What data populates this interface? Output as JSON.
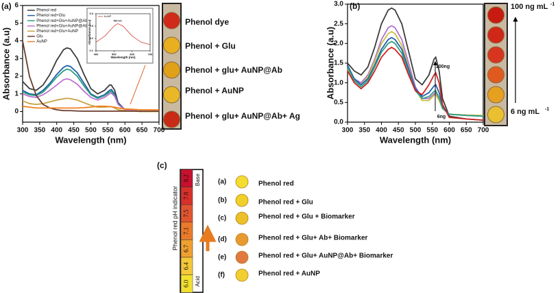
{
  "chart_data": [
    {
      "type": "line",
      "xlabel": "Wavelength (nm)",
      "ylabel": "Absorbance (a.u)",
      "x": [
        300,
        320,
        340,
        360,
        380,
        400,
        420,
        430,
        440,
        460,
        480,
        500,
        520,
        540,
        555,
        560,
        570,
        580,
        600,
        650,
        700
      ],
      "xlim": [
        300,
        700
      ],
      "xticks": [
        300,
        350,
        400,
        450,
        500,
        550,
        600,
        650,
        700
      ],
      "ylim": [
        -0.6,
        6
      ],
      "yticks": [
        0,
        1,
        2,
        3,
        4,
        5,
        6
      ],
      "legend": "upper left",
      "series": [
        {
          "name": "Phenol red",
          "color": "#3a3a3a",
          "values": [
            1.7,
            1.3,
            1.2,
            1.5,
            2.1,
            2.9,
            3.5,
            3.6,
            3.55,
            3.0,
            2.1,
            1.3,
            1.0,
            1.2,
            1.5,
            1.5,
            1.2,
            0.5,
            0.1,
            0.0,
            0.0
          ]
        },
        {
          "name": "Phenol red+Glu",
          "color": "#1f5fa8",
          "values": [
            1.2,
            1.0,
            0.95,
            1.2,
            1.6,
            2.1,
            2.5,
            2.6,
            2.55,
            2.2,
            1.6,
            1.0,
            0.8,
            0.95,
            1.2,
            1.25,
            1.0,
            0.45,
            0.1,
            0.0,
            0.0
          ]
        },
        {
          "name": "Phenol red+Glu+AuNP@Ab",
          "color": "#2a9d7f",
          "values": [
            1.1,
            0.95,
            0.9,
            1.1,
            1.5,
            1.95,
            2.3,
            2.4,
            2.35,
            2.0,
            1.45,
            0.95,
            0.75,
            0.9,
            1.1,
            1.15,
            0.9,
            0.4,
            0.1,
            0.0,
            0.0
          ]
        },
        {
          "name": "Phenol red+Glu+AuNP@Ab-OPN",
          "color": "#c070d0",
          "values": [
            1.0,
            0.85,
            0.8,
            0.95,
            1.2,
            1.5,
            1.8,
            1.85,
            1.8,
            1.55,
            1.15,
            0.8,
            0.65,
            0.8,
            1.0,
            1.05,
            0.85,
            0.4,
            0.1,
            0.0,
            0.0
          ]
        },
        {
          "name": "Phenol red+Glu+AuNP",
          "color": "#c8a040",
          "values": [
            0.6,
            0.45,
            0.4,
            0.45,
            0.55,
            0.65,
            0.72,
            0.75,
            0.73,
            0.65,
            0.5,
            0.35,
            0.25,
            0.25,
            0.28,
            0.28,
            0.2,
            0.1,
            0.05,
            0.0,
            0.0
          ]
        },
        {
          "name": "Glu",
          "color": "#6b3a2a",
          "values": [
            4.0,
            2.0,
            0.9,
            0.4,
            0.2,
            0.1,
            0.05,
            0.05,
            0.05,
            0.03,
            0.02,
            0.02,
            0.02,
            0.02,
            0.02,
            0.02,
            0.02,
            0.02,
            0.02,
            0.02,
            0.02
          ]
        },
        {
          "name": "AuNP",
          "color": "#f08020",
          "values": [
            0.3,
            0.25,
            0.2,
            0.2,
            0.2,
            0.2,
            0.2,
            0.2,
            0.2,
            0.2,
            0.22,
            0.25,
            0.3,
            0.3,
            0.28,
            0.27,
            0.25,
            0.2,
            0.15,
            0.1,
            0.1
          ]
        }
      ]
    },
    {
      "type": "line",
      "xlabel": "Wavelength (nm)",
      "ylabel": "Absorbance (a.u)",
      "annotations": [
        "520 nm"
      ],
      "x": [
        400,
        450,
        500,
        520,
        550,
        600,
        650,
        700
      ],
      "xlim": [
        400,
        700
      ],
      "xticks": [
        400,
        500,
        600,
        700
      ],
      "ylim": [
        0.1,
        0.4
      ],
      "yticks": [
        0.1,
        0.2,
        0.3,
        0.4
      ],
      "legend": "upper left",
      "series": [
        {
          "name": "AuNP",
          "color": "#d04030",
          "values": [
            0.17,
            0.22,
            0.3,
            0.32,
            0.3,
            0.22,
            0.17,
            0.15
          ]
        }
      ]
    },
    {
      "type": "line",
      "xlabel": "Wavelength (nm)",
      "ylabel": "Absorbance (a.u)",
      "annotations": [
        "100ng",
        "6ng"
      ],
      "x": [
        300,
        320,
        340,
        360,
        380,
        400,
        420,
        430,
        440,
        460,
        480,
        500,
        520,
        540,
        555,
        560,
        570,
        580,
        600,
        650,
        700
      ],
      "xlim": [
        300,
        700
      ],
      "xticks": [
        300,
        350,
        400,
        450,
        500,
        550,
        600,
        650,
        700
      ],
      "ylim": [
        0,
        3
      ],
      "yticks": [
        {
          "value": 0,
          "label": "0.0"
        },
        0.5,
        {
          "value": 1,
          "label": "1.0"
        },
        1.5,
        {
          "value": 2,
          "label": "2.0"
        },
        2.5,
        {
          "value": 3,
          "label": "3.0"
        }
      ],
      "series": [
        {
          "color": "#3a3a3a",
          "values": [
            1.5,
            1.3,
            1.2,
            1.4,
            1.9,
            2.5,
            2.85,
            2.9,
            2.85,
            2.5,
            1.8,
            1.1,
            0.95,
            1.2,
            1.6,
            1.65,
            1.3,
            0.6,
            0.15,
            0.08,
            0.05
          ]
        },
        {
          "color": "#b070d0",
          "values": [
            1.4,
            1.1,
            1.0,
            1.2,
            1.6,
            2.1,
            2.4,
            2.45,
            2.4,
            2.1,
            1.5,
            0.9,
            0.6,
            0.6,
            0.72,
            0.75,
            0.6,
            0.35,
            0.2,
            0.18,
            0.15
          ]
        },
        {
          "color": "#c8c040",
          "values": [
            1.35,
            1.05,
            0.95,
            1.15,
            1.55,
            2.0,
            2.25,
            2.3,
            2.25,
            1.95,
            1.4,
            0.85,
            0.55,
            0.55,
            0.68,
            0.7,
            0.55,
            0.35,
            0.2,
            0.18,
            0.17
          ]
        },
        {
          "color": "#2060b0",
          "values": [
            1.45,
            1.1,
            0.95,
            1.1,
            1.45,
            1.85,
            2.1,
            2.15,
            2.1,
            1.85,
            1.35,
            0.85,
            0.65,
            0.75,
            0.92,
            0.95,
            0.75,
            0.4,
            0.2,
            0.17,
            0.15
          ]
        },
        {
          "color": "#30a080",
          "values": [
            1.4,
            1.05,
            0.9,
            1.05,
            1.4,
            1.78,
            2.0,
            2.05,
            2.0,
            1.75,
            1.25,
            0.8,
            0.6,
            0.65,
            0.78,
            0.8,
            0.62,
            0.35,
            0.2,
            0.17,
            0.15
          ]
        },
        {
          "color": "#d02020",
          "values": [
            1.3,
            1.0,
            0.85,
            1.0,
            1.3,
            1.65,
            1.85,
            1.9,
            1.85,
            1.65,
            1.2,
            0.8,
            0.7,
            0.95,
            1.2,
            1.25,
            1.0,
            0.45,
            0.12,
            0.08,
            0.05
          ]
        }
      ]
    }
  ],
  "panel_labels": [
    "(a)",
    "(b)",
    "(c)"
  ],
  "panel_a_photo": [
    "Phenol dye",
    "Phenol + Glu",
    "Phenol + glu+ AuNP@Ab",
    "Phenol + AuNP",
    "Phenol + glu+ AuNP@Ab+ Ag"
  ],
  "panel_b_photo": {
    "top": {
      "text": "100 ng mL",
      "sup": "-1"
    },
    "bottom": {
      "text": "6 ng mL",
      "sup": "-1"
    }
  },
  "panel_c": {
    "scale_title": "Phenol red pH indicator",
    "base": "Base",
    "acid": "Acid",
    "ph": [
      "8.2",
      "7.8",
      "7.5",
      "7.1",
      "6.7",
      "6.4",
      "6.0"
    ],
    "items": [
      {
        "letter": "(a)",
        "text": "Phenol red"
      },
      {
        "letter": "(b)",
        "text": "Phenol red + Glu"
      },
      {
        "letter": "(c)",
        "text": "Phenol red + Glu + Biomarker"
      },
      {
        "letter": "(d)",
        "text": "Phenol red + Glu+ Ab+ Biomarker"
      },
      {
        "letter": "(e)",
        "text": "Phenol red + Glu+ AuNP@Ab+ Biomarker"
      },
      {
        "letter": "(f)",
        "text": "Phenol red + AuNP"
      }
    ]
  }
}
